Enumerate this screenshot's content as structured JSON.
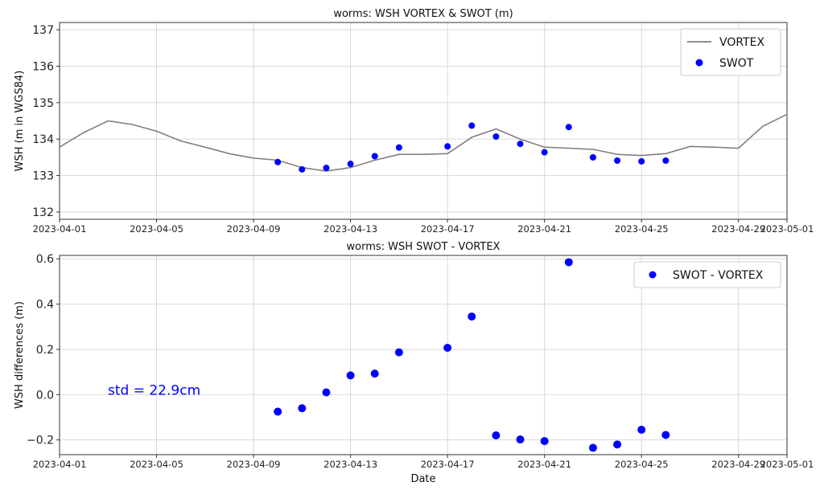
{
  "chart_data": [
    {
      "type": "line",
      "title": "worms: WSH VORTEX & SWOT (m)",
      "xlabel": "",
      "ylabel": "WSH (m in WGS84)",
      "xlim": [
        "2023-04-01",
        "2023-05-01"
      ],
      "ylim": [
        131.8,
        137.2
      ],
      "yticks": [
        132,
        133,
        134,
        135,
        136,
        137
      ],
      "xticks": [
        "2023-04-01",
        "2023-04-05",
        "2023-04-09",
        "2023-04-13",
        "2023-04-17",
        "2023-04-21",
        "2023-04-25",
        "2023-04-29",
        "2023-05-01"
      ],
      "grid": true,
      "legend_position": "top-right",
      "series": [
        {
          "name": "VORTEX",
          "type": "line",
          "color": "#808080",
          "x": [
            "2023-04-01",
            "2023-04-02",
            "2023-04-03",
            "2023-04-04",
            "2023-04-05",
            "2023-04-06",
            "2023-04-07",
            "2023-04-08",
            "2023-04-09",
            "2023-04-10",
            "2023-04-11",
            "2023-04-12",
            "2023-04-13",
            "2023-04-14",
            "2023-04-15",
            "2023-04-16",
            "2023-04-17",
            "2023-04-18",
            "2023-04-19",
            "2023-04-20",
            "2023-04-21",
            "2023-04-22",
            "2023-04-23",
            "2023-04-24",
            "2023-04-25",
            "2023-04-26",
            "2023-04-27",
            "2023-04-28",
            "2023-04-29",
            "2023-04-30",
            "2023-05-01"
          ],
          "y": [
            133.78,
            134.18,
            134.5,
            134.4,
            134.22,
            133.95,
            133.78,
            133.6,
            133.48,
            133.42,
            133.22,
            133.12,
            133.22,
            133.42,
            133.58,
            133.58,
            133.6,
            134.05,
            134.28,
            134.0,
            133.78,
            133.75,
            133.72,
            133.58,
            133.55,
            133.6,
            133.8,
            133.78,
            133.75,
            134.35,
            134.68
          ]
        },
        {
          "name": "SWOT",
          "type": "scatter",
          "color": "#0000ff",
          "x": [
            "2023-04-10",
            "2023-04-11",
            "2023-04-12",
            "2023-04-13",
            "2023-04-14",
            "2023-04-15",
            "2023-04-17",
            "2023-04-18",
            "2023-04-19",
            "2023-04-20",
            "2023-04-21",
            "2023-04-22",
            "2023-04-23",
            "2023-04-24",
            "2023-04-25",
            "2023-04-26"
          ],
          "y": [
            133.37,
            133.17,
            133.21,
            133.32,
            133.53,
            133.77,
            133.8,
            134.37,
            134.07,
            133.87,
            133.64,
            134.33,
            133.5,
            133.41,
            133.39,
            133.41
          ]
        }
      ]
    },
    {
      "type": "scatter",
      "title": "worms: WSH SWOT - VORTEX",
      "xlabel": "Date",
      "ylabel": "WSH differences (m)",
      "xlim": [
        "2023-04-01",
        "2023-05-01"
      ],
      "ylim": [
        -0.265,
        0.615
      ],
      "yticks": [
        -0.2,
        0.0,
        0.2,
        0.4,
        0.6
      ],
      "ytick_labels": [
        "−0.2",
        "0.0",
        "0.2",
        "0.4",
        "0.6"
      ],
      "xticks": [
        "2023-04-01",
        "2023-04-05",
        "2023-04-09",
        "2023-04-13",
        "2023-04-17",
        "2023-04-21",
        "2023-04-25",
        "2023-04-29",
        "2023-05-01"
      ],
      "grid": true,
      "legend_position": "top-right",
      "annotation": "std = 22.9cm",
      "annotation_color": "#0000ff",
      "series": [
        {
          "name": "SWOT - VORTEX",
          "type": "scatter",
          "color": "#0000ff",
          "x": [
            "2023-04-10",
            "2023-04-11",
            "2023-04-12",
            "2023-04-13",
            "2023-04-14",
            "2023-04-15",
            "2023-04-17",
            "2023-04-18",
            "2023-04-19",
            "2023-04-20",
            "2023-04-21",
            "2023-04-22",
            "2023-04-23",
            "2023-04-24",
            "2023-04-25",
            "2023-04-26"
          ],
          "y": [
            -0.075,
            -0.06,
            0.01,
            0.085,
            0.093,
            0.187,
            0.207,
            0.345,
            -0.18,
            -0.198,
            -0.205,
            0.585,
            -0.235,
            -0.22,
            -0.155,
            -0.178
          ]
        }
      ]
    }
  ]
}
